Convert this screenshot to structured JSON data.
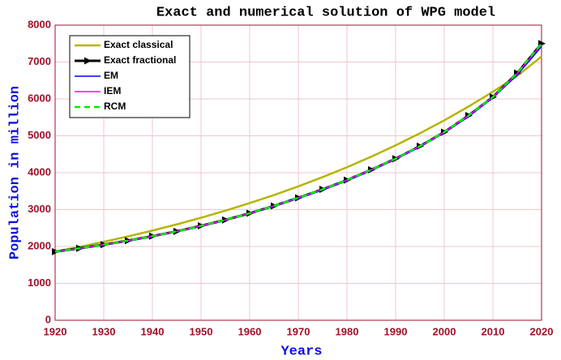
{
  "chart_data": {
    "type": "line",
    "title": "Exact and numerical solution of WPG model",
    "x_label": "Years",
    "y_label": "Population in million",
    "x": [
      1920,
      1925,
      1930,
      1935,
      1940,
      1945,
      1950,
      1955,
      1960,
      1965,
      1970,
      1975,
      1980,
      1985,
      1990,
      1995,
      2000,
      2005,
      2010,
      2015,
      2020
    ],
    "series": [
      {
        "name": "Exact classical",
        "color": "#b5b500",
        "values": [
          1860,
          1990,
          2127,
          2274,
          2431,
          2599,
          2779,
          2971,
          3176,
          3395,
          3630,
          3881,
          4149,
          4435,
          4742,
          5069,
          5419,
          5794,
          6194,
          6622,
          7150
        ]
      },
      {
        "name": "Exact fractional",
        "color": "#000000",
        "values": [
          1860,
          1950,
          2050,
          2160,
          2280,
          2410,
          2560,
          2720,
          2900,
          3100,
          3320,
          3550,
          3800,
          4080,
          4380,
          4720,
          5100,
          5550,
          6050,
          6700,
          7500
        ]
      },
      {
        "name": "EM",
        "color": "#0000ff",
        "values": [
          1850,
          1940,
          2040,
          2150,
          2270,
          2400,
          2550,
          2710,
          2890,
          3090,
          3300,
          3530,
          3780,
          4060,
          4360,
          4700,
          5080,
          5520,
          6030,
          6650,
          7420
        ]
      },
      {
        "name": "IEM",
        "color": "#ff00ff",
        "values": [
          1860,
          1950,
          2050,
          2160,
          2280,
          2410,
          2560,
          2720,
          2900,
          3100,
          3320,
          3550,
          3800,
          4080,
          4380,
          4720,
          5100,
          5550,
          6050,
          6690,
          7480
        ]
      },
      {
        "name": "RCM",
        "color": "#00ee00",
        "values": [
          1860,
          1950,
          2050,
          2160,
          2280,
          2410,
          2560,
          2720,
          2900,
          3100,
          3320,
          3550,
          3800,
          4080,
          4380,
          4720,
          5100,
          5550,
          6050,
          6700,
          7500
        ]
      }
    ],
    "xlim": [
      1920,
      2020
    ],
    "xticks": [
      1920,
      1930,
      1940,
      1950,
      1960,
      1970,
      1980,
      1990,
      2000,
      2010,
      2020
    ],
    "ylim": [
      0,
      8000
    ],
    "yticks": [
      0,
      1000,
      2000,
      3000,
      4000,
      5000,
      6000,
      7000,
      8000
    ],
    "grid": true,
    "legend": "upper left"
  }
}
